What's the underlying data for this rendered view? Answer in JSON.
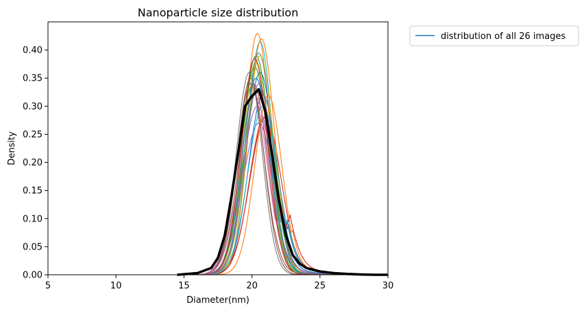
{
  "chart_data": {
    "type": "line",
    "title": "Nanoparticle size distribution",
    "xlabel": "Diameter(nm)",
    "ylabel": "Density",
    "xlim": [
      5,
      30
    ],
    "ylim": [
      0,
      0.45
    ],
    "xticks": [
      "5",
      "10",
      "15",
      "20",
      "25",
      "30"
    ],
    "yticks": [
      "0.00",
      "0.05",
      "0.10",
      "0.15",
      "0.20",
      "0.25",
      "0.30",
      "0.35",
      "0.40"
    ],
    "grid": false,
    "legend": {
      "position": "outside-top-right",
      "entries": [
        "distribution of all 26 images"
      ]
    },
    "colors": [
      "#1f77b4",
      "#ff7f0e",
      "#2ca02c",
      "#d62728",
      "#9467bd",
      "#8c564b",
      "#e377c2",
      "#7f7f7f",
      "#bcbd22",
      "#17becf"
    ],
    "mean_color": "#000000",
    "series": [
      {
        "mu": 20.8,
        "sigma": 1.05,
        "peak": 0.32,
        "tail": 0.02
      },
      {
        "mu": 20.4,
        "sigma": 0.93,
        "peak": 0.43,
        "tail": 0.0
      },
      {
        "mu": 20.3,
        "sigma": 1.02,
        "peak": 0.39,
        "tail": 0.005
      },
      {
        "mu": 21.0,
        "sigma": 1.15,
        "peak": 0.28,
        "tail": 0.025
      },
      {
        "mu": 20.5,
        "sigma": 1.18,
        "peak": 0.27,
        "tail": 0.01
      },
      {
        "mu": 20.1,
        "sigma": 1.05,
        "peak": 0.34,
        "tail": 0.0
      },
      {
        "mu": 20.0,
        "sigma": 1.1,
        "peak": 0.33,
        "tail": 0.005
      },
      {
        "mu": 19.8,
        "sigma": 0.95,
        "peak": 0.36,
        "tail": 0.0
      },
      {
        "mu": 20.3,
        "sigma": 0.98,
        "peak": 0.38,
        "tail": 0.0
      },
      {
        "mu": 20.6,
        "sigma": 0.92,
        "peak": 0.415,
        "tail": 0.005
      },
      {
        "mu": 20.6,
        "sigma": 1.05,
        "peak": 0.36,
        "tail": 0.015
      },
      {
        "mu": 20.7,
        "sigma": 0.96,
        "peak": 0.42,
        "tail": 0.0
      },
      {
        "mu": 20.2,
        "sigma": 1.0,
        "peak": 0.37,
        "tail": 0.005
      },
      {
        "mu": 20.9,
        "sigma": 1.08,
        "peak": 0.28,
        "tail": 0.02
      },
      {
        "mu": 20.4,
        "sigma": 1.12,
        "peak": 0.3,
        "tail": 0.01
      },
      {
        "mu": 19.9,
        "sigma": 0.98,
        "peak": 0.35,
        "tail": 0.0
      },
      {
        "mu": 20.2,
        "sigma": 1.1,
        "peak": 0.32,
        "tail": 0.01
      },
      {
        "mu": 20.5,
        "sigma": 0.99,
        "peak": 0.395,
        "tail": 0.005
      },
      {
        "mu": 20.6,
        "sigma": 1.0,
        "peak": 0.39,
        "tail": 0.0
      },
      {
        "mu": 20.8,
        "sigma": 1.1,
        "peak": 0.3,
        "tail": 0.02
      },
      {
        "mu": 20.3,
        "sigma": 1.02,
        "peak": 0.35,
        "tail": 0.005
      },
      {
        "mu": 21.2,
        "sigma": 1.0,
        "peak": 0.32,
        "tail": 0.015
      },
      {
        "mu": 20.4,
        "sigma": 1.08,
        "peak": 0.33,
        "tail": 0.01
      },
      {
        "mu": 20.2,
        "sigma": 0.97,
        "peak": 0.385,
        "tail": 0.0
      },
      {
        "mu": 20.5,
        "sigma": 1.05,
        "peak": 0.34,
        "tail": 0.01
      },
      {
        "mu": 19.9,
        "sigma": 1.02,
        "peak": 0.34,
        "tail": 0.005
      }
    ],
    "mean_series": {
      "x": [
        14.5,
        15,
        16,
        17,
        17.5,
        18,
        18.5,
        19,
        19.5,
        20,
        20.5,
        21,
        21.5,
        22,
        22.5,
        23,
        23.5,
        24,
        25,
        26,
        27,
        28,
        29,
        30
      ],
      "y": [
        0.0,
        0.001,
        0.003,
        0.012,
        0.03,
        0.07,
        0.14,
        0.22,
        0.3,
        0.318,
        0.33,
        0.29,
        0.21,
        0.13,
        0.07,
        0.035,
        0.02,
        0.012,
        0.006,
        0.003,
        0.0015,
        0.0005,
        0.0,
        0.0
      ]
    }
  }
}
